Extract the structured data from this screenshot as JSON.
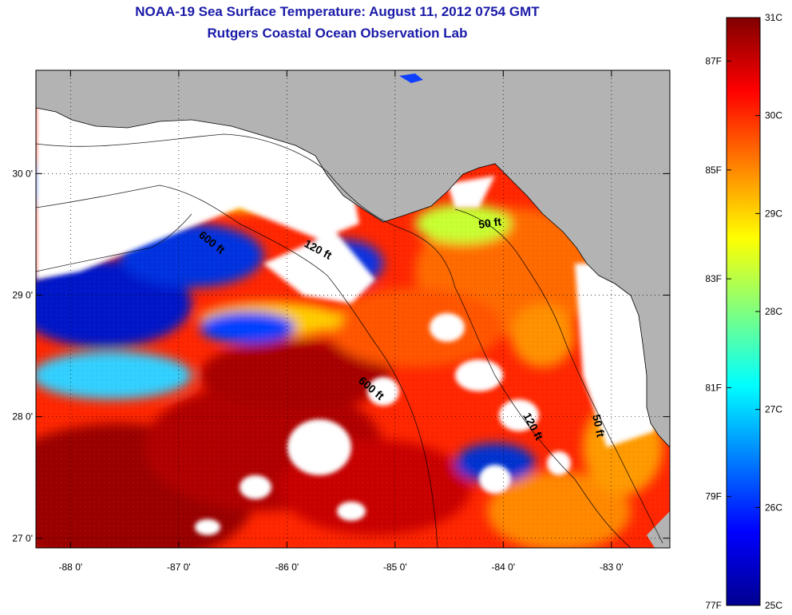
{
  "title": {
    "line1": "NOAA-19 Sea Surface Temperature:  August 11, 2012 0754 GMT",
    "line2": "Rutgers Coastal Ocean Observation Lab"
  },
  "map": {
    "lon_range": [
      -88.32,
      -82.46
    ],
    "lat_range": [
      26.92,
      30.85
    ],
    "lon_ticks": [
      {
        "value": -88,
        "label": "-88 0'"
      },
      {
        "value": -87,
        "label": "-87 0'"
      },
      {
        "value": -86,
        "label": "-86 0'"
      },
      {
        "value": -85,
        "label": "-85 0'"
      },
      {
        "value": -84,
        "label": "-84 0'"
      },
      {
        "value": -83,
        "label": "-83 0'"
      }
    ],
    "lat_ticks": [
      {
        "value": 30,
        "label": "30 0'"
      },
      {
        "value": 29,
        "label": "29 0'"
      },
      {
        "value": 28,
        "label": "28 0'"
      },
      {
        "value": 27,
        "label": "27 0'"
      }
    ],
    "grid": "dotted",
    "land_color": "#b3b3b3",
    "cloud_color": "#ffffff",
    "depth_contours": [
      {
        "label": "600 ft"
      },
      {
        "label": "120 ft"
      },
      {
        "label": "50 ft"
      },
      {
        "label": "600 ft"
      },
      {
        "label": "120 ft"
      },
      {
        "label": "50 ft"
      }
    ]
  },
  "colorbar": {
    "colormap": "jet",
    "celsius_ticks": [
      {
        "value": 31,
        "label": "31C"
      },
      {
        "value": 30,
        "label": "30C"
      },
      {
        "value": 29,
        "label": "29C"
      },
      {
        "value": 28,
        "label": "28C"
      },
      {
        "value": 27,
        "label": "27C"
      },
      {
        "value": 26,
        "label": "26C"
      },
      {
        "value": 25,
        "label": "25C"
      }
    ],
    "fahrenheit_ticks": [
      {
        "value": 87,
        "label": "87F"
      },
      {
        "value": 85,
        "label": "85F"
      },
      {
        "value": 83,
        "label": "83F"
      },
      {
        "value": 81,
        "label": "81F"
      },
      {
        "value": 79,
        "label": "79F"
      },
      {
        "value": 77,
        "label": "77F"
      }
    ],
    "range_c": [
      25,
      31
    ]
  }
}
